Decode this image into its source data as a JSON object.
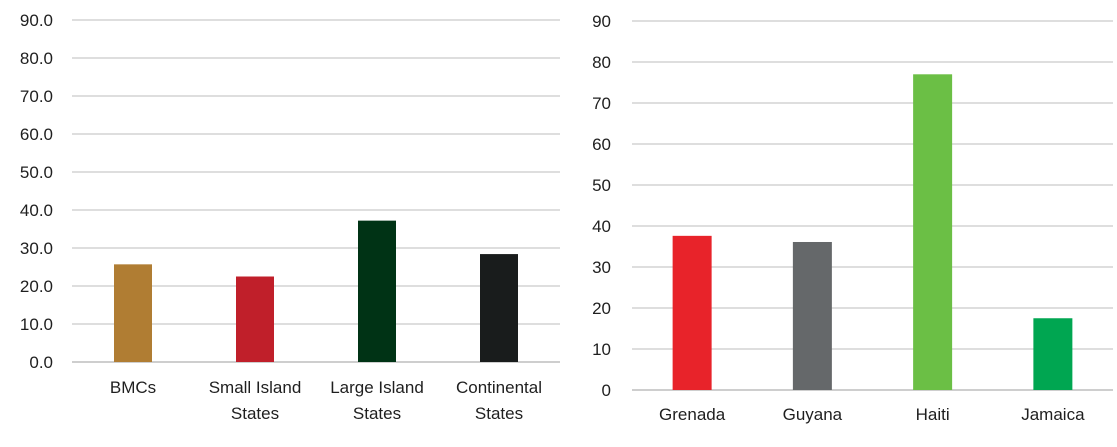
{
  "chart_data": [
    {
      "type": "bar",
      "categories": [
        [
          "BMCs"
        ],
        [
          "Small Island",
          "States"
        ],
        [
          "Large Island",
          "States"
        ],
        [
          "Continental",
          "States"
        ]
      ],
      "values": [
        25.7,
        22.5,
        37.2,
        28.4
      ],
      "colors": [
        "#b07d33",
        "#c01f2a",
        "#003315",
        "#191c1c"
      ],
      "ylim": [
        0,
        90
      ],
      "ytick_step": 10,
      "ytick_labels": [
        "0.0",
        "10.0",
        "20.0",
        "30.0",
        "40.0",
        "50.0",
        "60.0",
        "70.0",
        "80.0",
        "90.0"
      ],
      "grid": true,
      "title": "",
      "xlabel": "",
      "ylabel": ""
    },
    {
      "type": "bar",
      "categories": [
        [
          "Grenada"
        ],
        [
          "Guyana"
        ],
        [
          "Haiti"
        ],
        [
          "Jamaica"
        ]
      ],
      "values": [
        37.6,
        36.1,
        77.0,
        17.5
      ],
      "colors": [
        "#e8232a",
        "#65686a",
        "#6bbf45",
        "#00a651"
      ],
      "ylim": [
        0,
        90
      ],
      "ytick_step": 10,
      "ytick_labels": [
        "0",
        "10",
        "20",
        "30",
        "40",
        "50",
        "60",
        "70",
        "80",
        "90"
      ],
      "grid": true,
      "title": "",
      "xlabel": "",
      "ylabel": ""
    }
  ]
}
